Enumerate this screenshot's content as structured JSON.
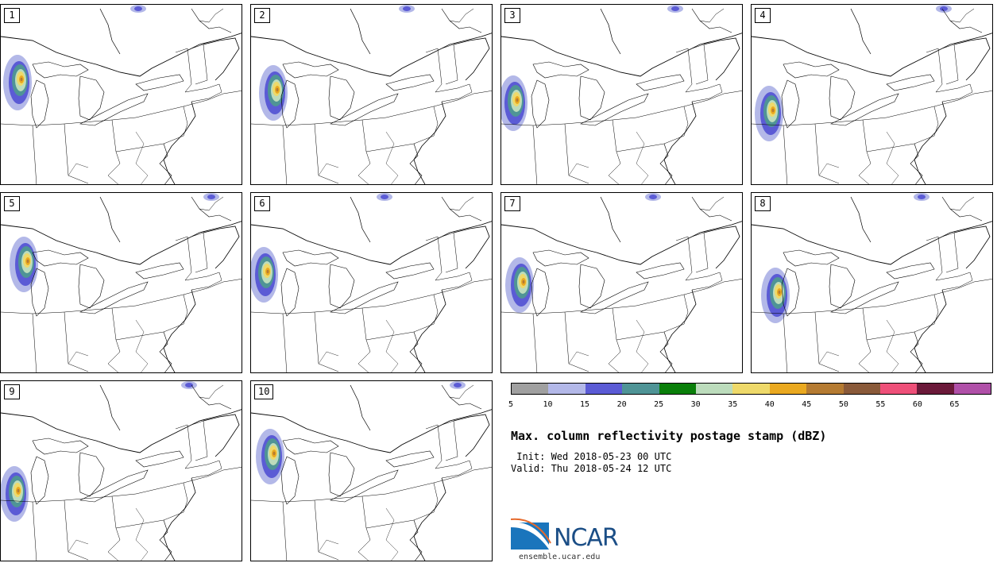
{
  "title": "Max. column reflectivity postage stamp (dBZ)",
  "init_text": " Init: Wed 2018-05-23 00 UTC",
  "valid_text": "Valid: Thu 2018-05-24 12 UTC",
  "logo_text": "NCAR",
  "website": "ensemble.ucar.edu",
  "members": [
    "1",
    "2",
    "3",
    "4",
    "5",
    "6",
    "7",
    "8",
    "9",
    "10"
  ],
  "colorbar": {
    "ticks": [
      "5",
      "10",
      "15",
      "20",
      "25",
      "30",
      "35",
      "40",
      "45",
      "50",
      "55",
      "60",
      "65"
    ],
    "colors": [
      "#a0a0a0",
      "#b3b8e8",
      "#5b5bd5",
      "#4f9496",
      "#0a7f0a",
      "#bcdcbc",
      "#eed96a",
      "#eaa920",
      "#b57b32",
      "#8a5a3a",
      "#ee5079",
      "#6b1a3a",
      "#b050a8"
    ]
  }
}
